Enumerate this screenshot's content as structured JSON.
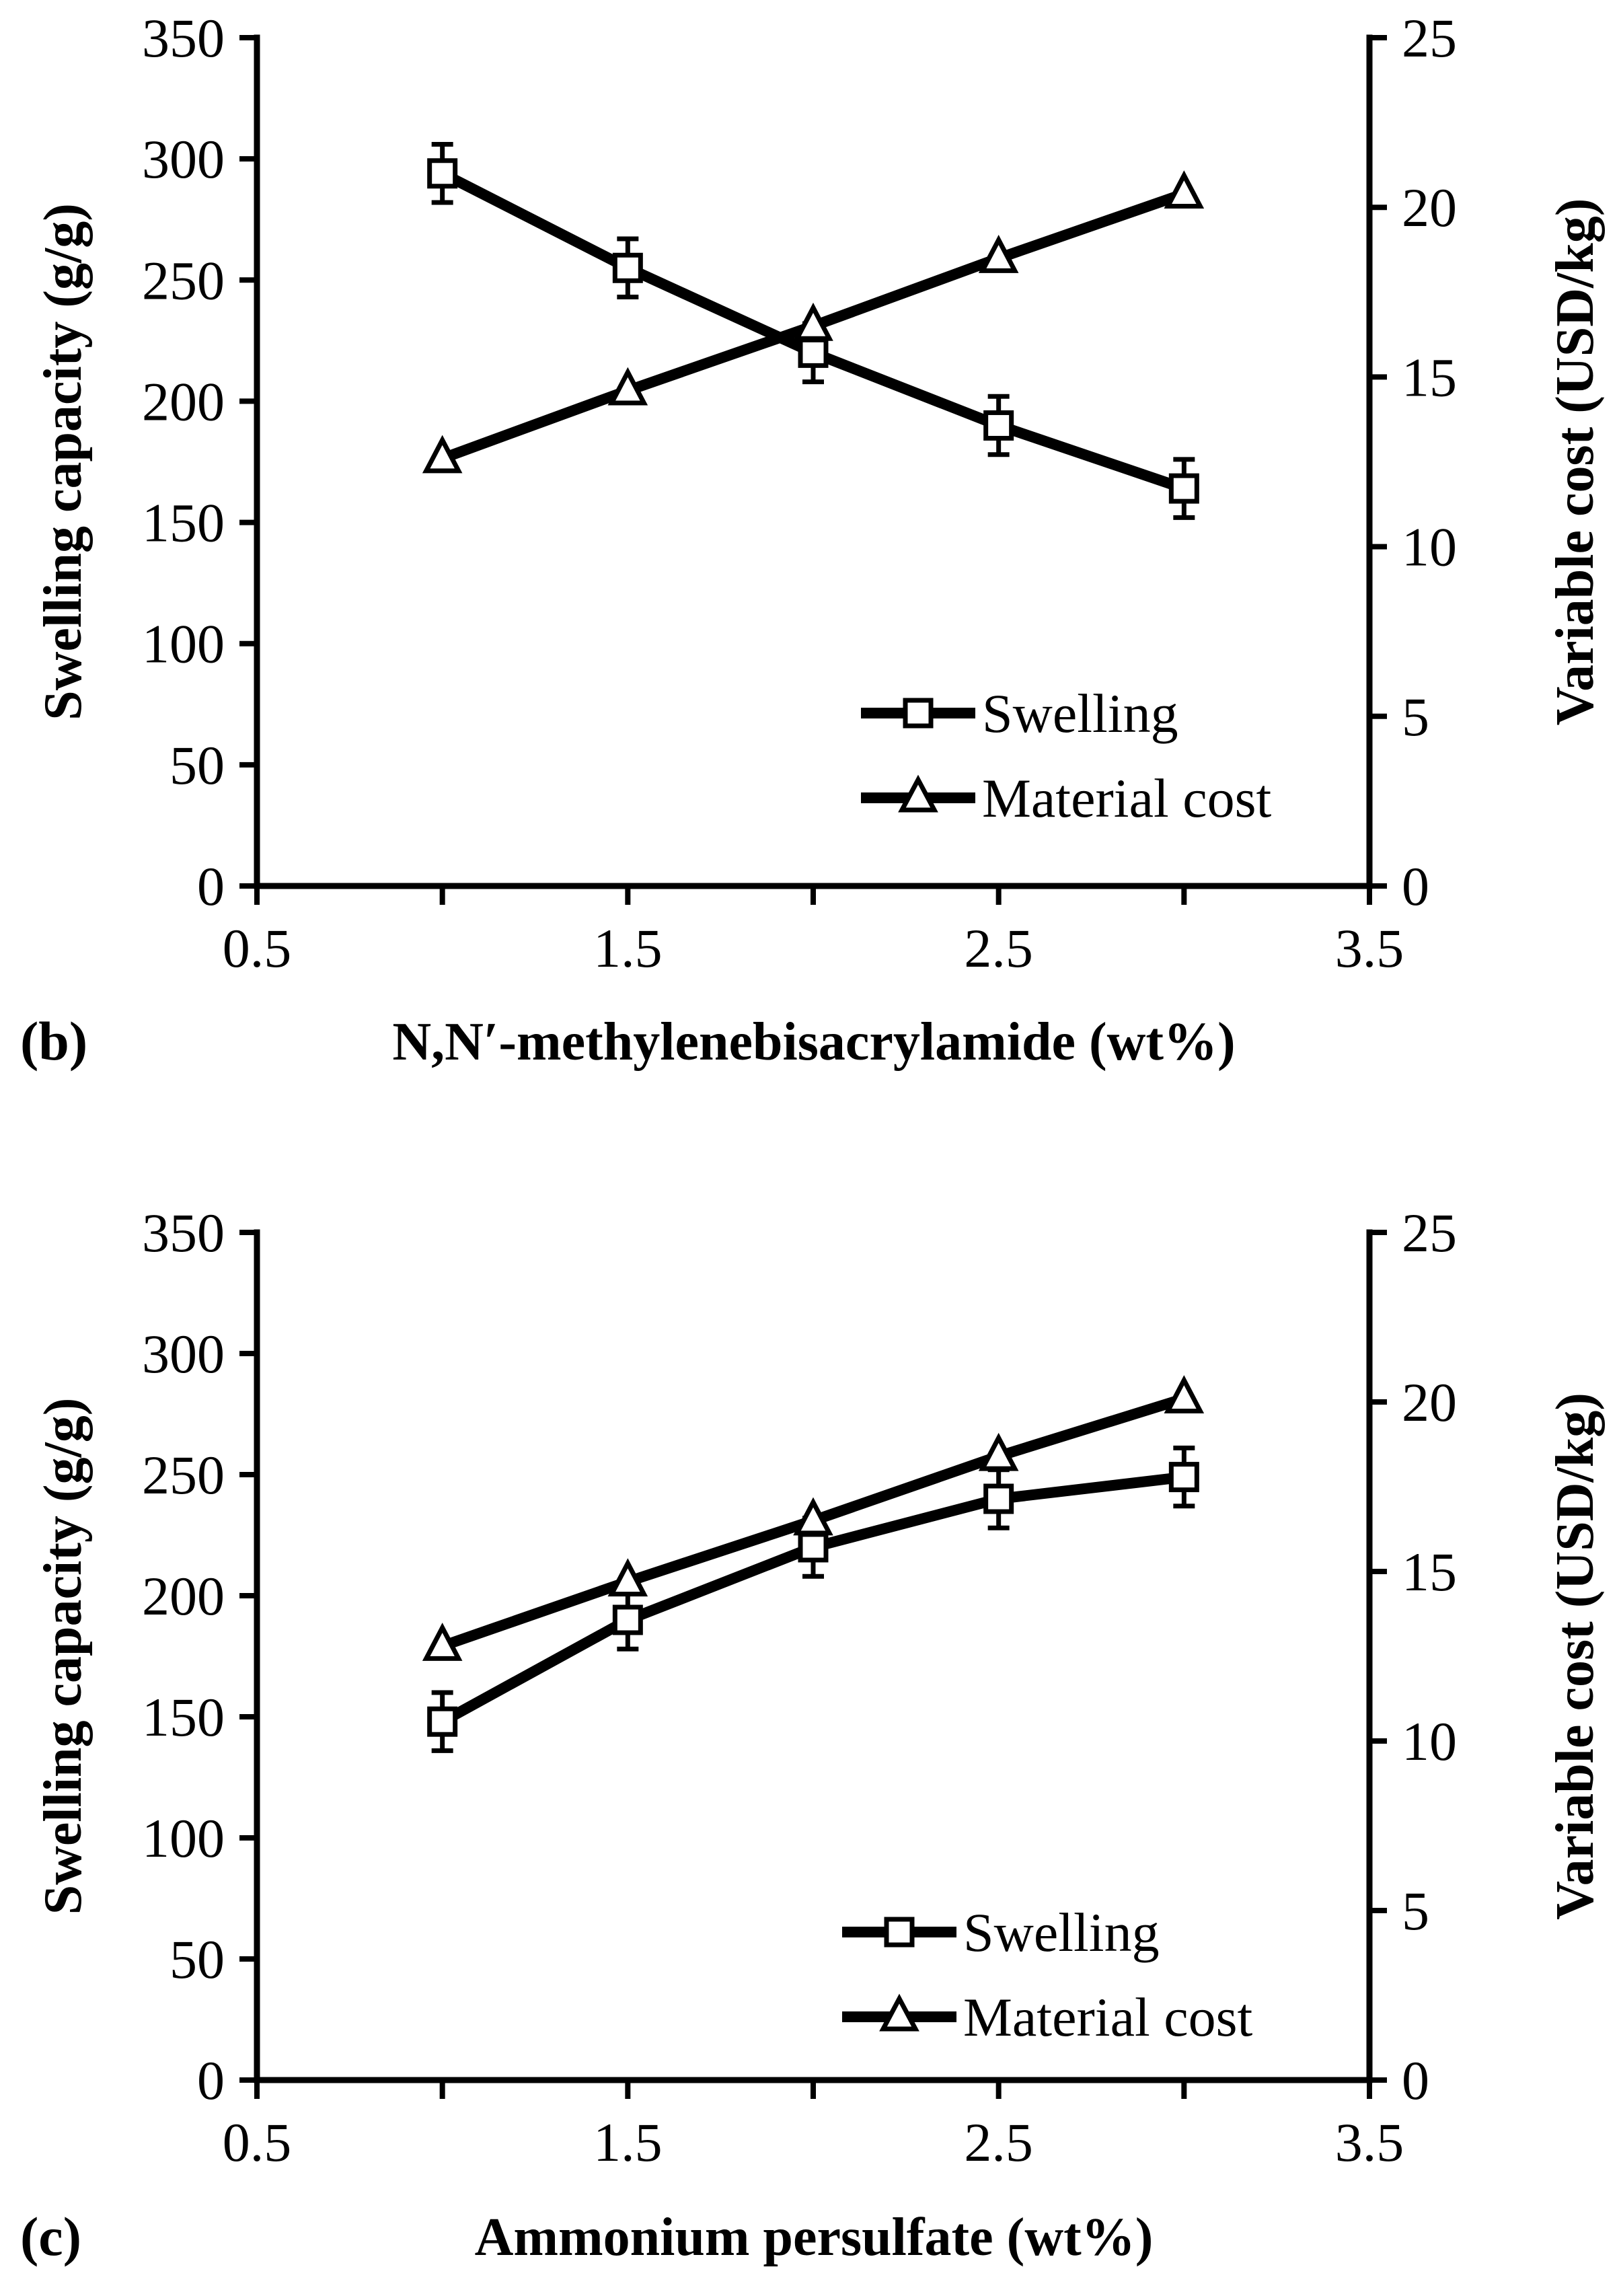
{
  "chart_data": [
    {
      "panel": "(b)",
      "type": "line",
      "xlabel": "N,N′-methylenebisacrylamide (wt%)",
      "ylabel_left": "Swelling capacity (g/g)",
      "ylabel_right": "Variable cost (USD/kg)",
      "xlim": [
        0.5,
        3.5
      ],
      "xticks": [
        "0.5",
        "1.5",
        "2.5",
        "3.5"
      ],
      "ylim_left": [
        0,
        350
      ],
      "yticks_left": [
        "0",
        "50",
        "100",
        "150",
        "200",
        "250",
        "300",
        "350"
      ],
      "ylim_right": [
        0,
        25
      ],
      "yticks_right": [
        "0",
        "5",
        "10",
        "15",
        "20",
        "25"
      ],
      "grid": false,
      "legend_position": "bottom-right",
      "series": [
        {
          "name": "Swelling",
          "axis": "left",
          "marker": "square",
          "x": [
            1.0,
            1.5,
            2.0,
            2.5,
            3.0
          ],
          "values": [
            294,
            255,
            220,
            190,
            164
          ],
          "error": [
            12,
            12,
            12,
            12,
            12
          ]
        },
        {
          "name": "Material cost",
          "axis": "right",
          "marker": "triangle",
          "x": [
            1.0,
            1.5,
            2.0,
            2.5,
            3.0
          ],
          "values": [
            12.6,
            14.6,
            16.5,
            18.5,
            20.4
          ]
        }
      ]
    },
    {
      "panel": "(c)",
      "type": "line",
      "xlabel": "Ammonium persulfate (wt%)",
      "ylabel_left": "Swelling capacity (g/g)",
      "ylabel_right": "Variable cost (USD/kg)",
      "xlim": [
        0.5,
        3.5
      ],
      "xticks": [
        "0.5",
        "1.5",
        "2.5",
        "3.5"
      ],
      "ylim_left": [
        0,
        350
      ],
      "yticks_left": [
        "0",
        "50",
        "100",
        "150",
        "200",
        "250",
        "300",
        "350"
      ],
      "ylim_right": [
        0,
        25
      ],
      "yticks_right": [
        "0",
        "5",
        "10",
        "15",
        "20",
        "25"
      ],
      "grid": false,
      "legend_position": "bottom-right",
      "series": [
        {
          "name": "Swelling",
          "axis": "left",
          "marker": "square",
          "x": [
            1.0,
            1.5,
            2.0,
            2.5,
            3.0
          ],
          "values": [
            148,
            190,
            220,
            240,
            249
          ],
          "error": [
            12,
            12,
            12,
            12,
            12
          ]
        },
        {
          "name": "Material cost",
          "axis": "right",
          "marker": "triangle",
          "x": [
            1.0,
            1.5,
            2.0,
            2.5,
            3.0
          ],
          "values": [
            12.8,
            14.7,
            16.5,
            18.4,
            20.1
          ]
        }
      ]
    }
  ]
}
